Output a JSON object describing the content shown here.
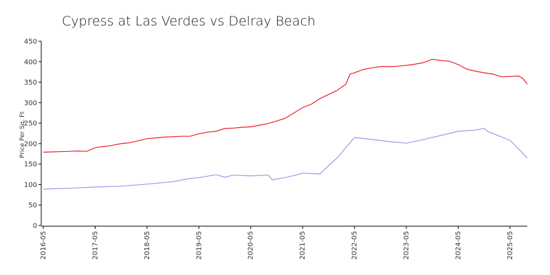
{
  "chart_data": {
    "type": "line",
    "title": "Cypress at Las Verdes vs Delray Beach",
    "y_label": "Price Per Sq. Ft",
    "series": [
      {
        "name": "Cypress at Las Verdes",
        "color": "#ee1c25",
        "x": [
          "2016-05",
          "2016-11",
          "2017-01",
          "2017-03",
          "2017-05",
          "2017-07",
          "2017-09",
          "2017-11",
          "2018-01",
          "2018-03",
          "2018-05",
          "2018-07",
          "2018-09",
          "2018-11",
          "2019-01",
          "2019-03",
          "2019-05",
          "2019-07",
          "2019-09",
          "2019-11",
          "2020-01",
          "2020-03",
          "2020-05",
          "2020-07",
          "2020-09",
          "2020-11",
          "2021-01",
          "2021-03",
          "2021-05",
          "2021-07",
          "2021-09",
          "2021-11",
          "2022-01",
          "2022-03",
          "2022-04",
          "2022-05",
          "2022-07",
          "2022-09",
          "2022-11",
          "2023-01",
          "2023-03",
          "2023-05",
          "2023-07",
          "2023-09",
          "2023-11",
          "2024-01",
          "2024-03",
          "2024-05",
          "2024-07",
          "2024-09",
          "2024-11",
          "2025-01",
          "2025-03",
          "2025-05",
          "2025-07",
          "2025-08",
          "2025-09"
        ],
        "values": [
          179,
          181,
          182,
          181,
          190,
          193,
          196,
          200,
          202,
          207,
          212,
          214,
          216,
          217,
          218,
          218,
          224,
          228,
          230,
          237,
          238,
          240,
          241,
          245,
          249,
          255,
          262,
          275,
          288,
          296,
          310,
          320,
          330,
          345,
          370,
          373,
          381,
          385,
          388,
          388,
          389,
          391,
          394,
          398,
          406,
          403,
          401,
          393,
          382,
          377,
          373,
          370,
          363,
          364,
          365,
          359,
          345
        ]
      },
      {
        "name": "Delray Beach",
        "color": "#9999ee",
        "x": [
          "2016-05",
          "2016-11",
          "2017-05",
          "2017-11",
          "2018-05",
          "2018-11",
          "2019-03",
          "2019-05",
          "2019-09",
          "2019-11",
          "2020-01",
          "2020-05",
          "2020-09",
          "2020-10",
          "2021-01",
          "2021-03",
          "2021-05",
          "2021-09",
          "2021-11",
          "2022-01",
          "2022-03",
          "2022-05",
          "2022-09",
          "2023-01",
          "2023-05",
          "2023-09",
          "2024-01",
          "2024-05",
          "2024-09",
          "2024-11",
          "2024-12",
          "2025-05",
          "2025-09"
        ],
        "values": [
          89,
          91,
          94,
          96,
          101,
          107,
          115,
          117,
          124,
          118,
          123,
          121,
          123,
          112,
          117,
          122,
          128,
          126,
          146,
          165,
          190,
          215,
          210,
          205,
          201,
          210,
          220,
          230,
          233,
          237,
          229,
          208,
          165
        ]
      }
    ],
    "xlim": [
      "2016-05",
      "2025-09"
    ],
    "xticks": [
      "2016-05",
      "2017-05",
      "2018-05",
      "2019-05",
      "2020-05",
      "2021-05",
      "2022-05",
      "2023-05",
      "2024-05",
      "2025-05"
    ],
    "ylim": [
      0,
      450
    ],
    "yticks": [
      0,
      50,
      100,
      150,
      200,
      250,
      300,
      350,
      400,
      450
    ]
  }
}
